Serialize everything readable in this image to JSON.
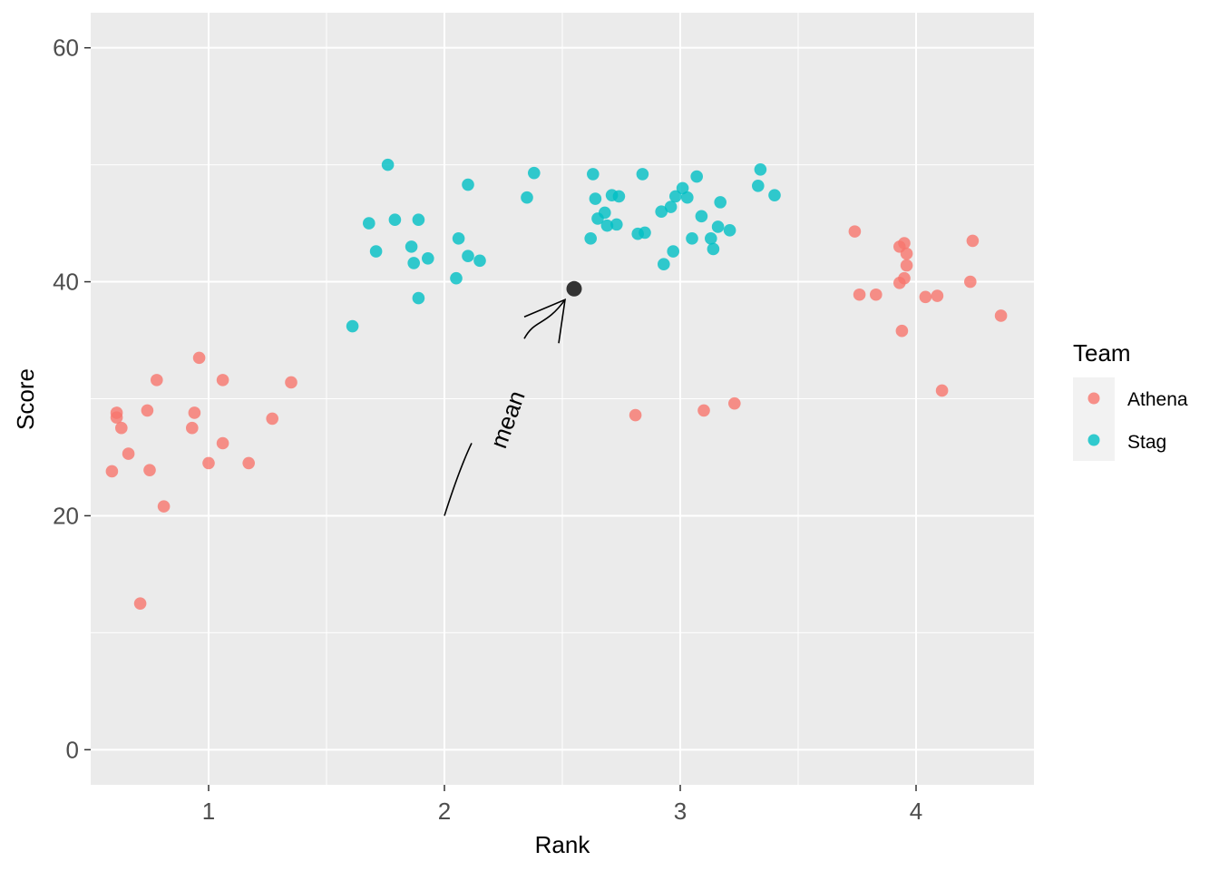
{
  "chart_data": {
    "type": "scatter",
    "xlabel": "Rank",
    "ylabel": "Score",
    "xlim": [
      0.5,
      4.5
    ],
    "ylim": [
      -3,
      63
    ],
    "x_ticks": [
      1,
      2,
      3,
      4
    ],
    "y_ticks": [
      0,
      20,
      40,
      60
    ],
    "grid": true,
    "legend": {
      "title": "Team",
      "position": "right"
    },
    "series": [
      {
        "name": "Athena",
        "color": "#F8766D",
        "points": [
          [
            0.59,
            23.8
          ],
          [
            0.61,
            28.4
          ],
          [
            0.61,
            28.8
          ],
          [
            0.63,
            27.5
          ],
          [
            0.66,
            25.3
          ],
          [
            0.71,
            12.5
          ],
          [
            0.74,
            29.0
          ],
          [
            0.75,
            23.9
          ],
          [
            0.78,
            31.6
          ],
          [
            0.81,
            20.8
          ],
          [
            0.93,
            27.5
          ],
          [
            0.94,
            28.8
          ],
          [
            0.96,
            33.5
          ],
          [
            1.0,
            24.5
          ],
          [
            1.06,
            26.2
          ],
          [
            1.06,
            31.6
          ],
          [
            1.17,
            24.5
          ],
          [
            1.27,
            28.3
          ],
          [
            1.35,
            31.4
          ],
          [
            2.81,
            28.6
          ],
          [
            3.1,
            29.0
          ],
          [
            3.23,
            29.6
          ],
          [
            3.74,
            44.3
          ],
          [
            3.76,
            38.9
          ],
          [
            3.83,
            38.9
          ],
          [
            3.93,
            43.0
          ],
          [
            3.93,
            39.9
          ],
          [
            3.94,
            35.8
          ],
          [
            3.95,
            43.3
          ],
          [
            3.95,
            40.3
          ],
          [
            3.96,
            41.4
          ],
          [
            3.96,
            42.4
          ],
          [
            4.04,
            38.7
          ],
          [
            4.09,
            38.8
          ],
          [
            4.11,
            30.7
          ],
          [
            4.23,
            40.0
          ],
          [
            4.24,
            43.5
          ],
          [
            4.36,
            37.1
          ]
        ]
      },
      {
        "name": "Stag",
        "color": "#00BFC4",
        "points": [
          [
            1.61,
            36.2
          ],
          [
            1.68,
            45.0
          ],
          [
            1.71,
            42.6
          ],
          [
            1.76,
            50.0
          ],
          [
            1.79,
            45.3
          ],
          [
            1.86,
            43.0
          ],
          [
            1.87,
            41.6
          ],
          [
            1.89,
            45.3
          ],
          [
            1.89,
            38.6
          ],
          [
            1.93,
            42.0
          ],
          [
            2.05,
            40.3
          ],
          [
            2.06,
            43.7
          ],
          [
            2.1,
            48.3
          ],
          [
            2.1,
            42.2
          ],
          [
            2.15,
            41.8
          ],
          [
            2.35,
            47.2
          ],
          [
            2.38,
            49.3
          ],
          [
            2.62,
            43.7
          ],
          [
            2.63,
            49.2
          ],
          [
            2.64,
            47.1
          ],
          [
            2.65,
            45.4
          ],
          [
            2.68,
            45.9
          ],
          [
            2.69,
            44.8
          ],
          [
            2.71,
            47.4
          ],
          [
            2.73,
            44.9
          ],
          [
            2.74,
            47.3
          ],
          [
            2.82,
            44.1
          ],
          [
            2.84,
            49.2
          ],
          [
            2.85,
            44.2
          ],
          [
            2.92,
            46.0
          ],
          [
            2.93,
            41.5
          ],
          [
            2.96,
            46.4
          ],
          [
            2.97,
            42.6
          ],
          [
            2.98,
            47.3
          ],
          [
            3.01,
            48.0
          ],
          [
            3.03,
            47.2
          ],
          [
            3.05,
            43.7
          ],
          [
            3.07,
            49.0
          ],
          [
            3.09,
            45.6
          ],
          [
            3.13,
            43.7
          ],
          [
            3.14,
            42.8
          ],
          [
            3.16,
            44.7
          ],
          [
            3.17,
            46.8
          ],
          [
            3.21,
            44.4
          ],
          [
            3.33,
            48.2
          ],
          [
            3.34,
            49.6
          ],
          [
            3.4,
            47.4
          ]
        ]
      }
    ],
    "mean_point": {
      "x": 2.55,
      "y": 39.4,
      "color": "#333333"
    },
    "annotation": {
      "text": "mean",
      "x": 2.3,
      "y": 28,
      "angle_deg": -70
    }
  }
}
